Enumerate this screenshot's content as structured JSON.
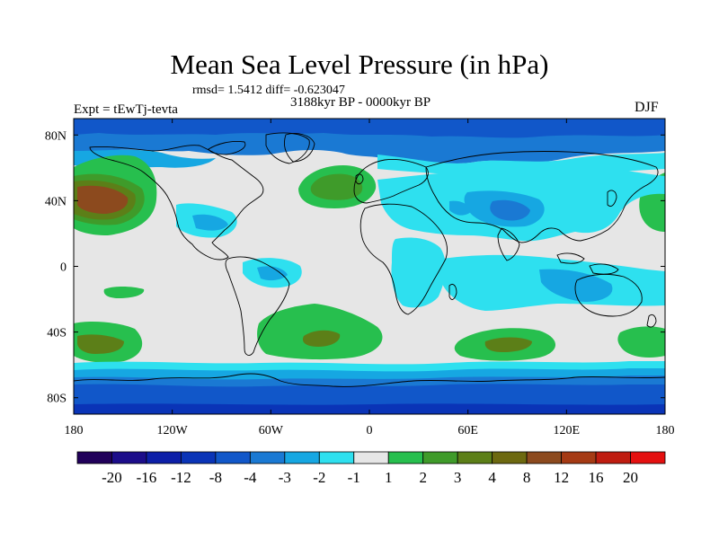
{
  "title": "Mean Sea Level Pressure (in hPa)",
  "stats": "rmsd= 1.5412 diff= -0.623047",
  "subtitle_center": "3188kyr BP - 0000kyr BP",
  "subtitle_left": "Expt = tEwTj-tevta",
  "subtitle_right": "DJF",
  "map": {
    "projection": "cylindrical-equidistant",
    "lon_range": [
      -180,
      180
    ],
    "lat_range": [
      -90,
      90
    ],
    "lon_ticks": [
      {
        "value": -180,
        "label": "180"
      },
      {
        "value": -120,
        "label": "120W"
      },
      {
        "value": -60,
        "label": "60W"
      },
      {
        "value": 0,
        "label": "0"
      },
      {
        "value": 60,
        "label": "60E"
      },
      {
        "value": 120,
        "label": "120E"
      },
      {
        "value": 180,
        "label": "180"
      }
    ],
    "lat_ticks": [
      {
        "value": 80,
        "label": "80N"
      },
      {
        "value": 40,
        "label": "40N"
      },
      {
        "value": 0,
        "label": "0"
      },
      {
        "value": -40,
        "label": "40S"
      },
      {
        "value": -80,
        "label": "80S"
      }
    ]
  },
  "colorbar": {
    "colors": [
      "#21005a",
      "#1c0d8a",
      "#0d1fa8",
      "#0a34b7",
      "#1157c9",
      "#1a79d3",
      "#16a7e2",
      "#2ee0ef",
      "#e6e6e6",
      "#27bf4e",
      "#3f9b2a",
      "#5c7f18",
      "#6d6910",
      "#8c4a1e",
      "#a53a14",
      "#bf1c10",
      "#e41010"
    ],
    "labels": [
      "-20",
      "-16",
      "-12",
      "-8",
      "-4",
      "-3",
      "-2",
      "-1",
      "1",
      "2",
      "3",
      "4",
      "8",
      "12",
      "16",
      "20"
    ]
  }
}
